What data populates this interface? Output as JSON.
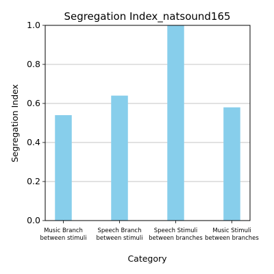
{
  "chart_data": {
    "type": "bar",
    "title": "Segregation Index_natsound165",
    "xlabel": "Category",
    "ylabel": "Segregation Index",
    "categories": [
      [
        "Music Branch",
        "between stimuli"
      ],
      [
        "Speech Branch",
        "between stimuli"
      ],
      [
        "Speech Stimuli",
        "between branches"
      ],
      [
        "Music Stimuli",
        "between branches"
      ]
    ],
    "values": [
      0.54,
      0.64,
      1.0,
      0.58
    ],
    "ylim": [
      0,
      1.0
    ],
    "yticks": [
      0.0,
      0.2,
      0.4,
      0.6,
      0.8,
      1.0
    ],
    "ytick_labels": [
      "0.0",
      "0.2",
      "0.4",
      "0.6",
      "0.8",
      "1.0"
    ],
    "grid": "horizontal",
    "bar_color": "#87ceeb"
  }
}
